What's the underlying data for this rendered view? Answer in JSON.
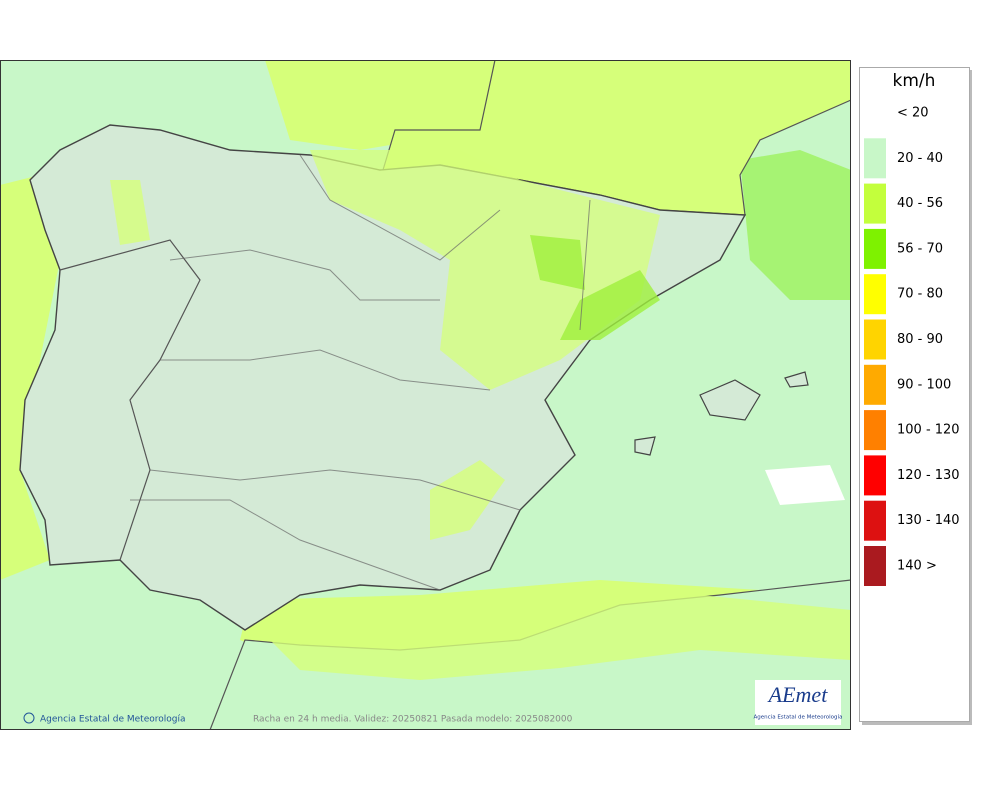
{
  "legend": {
    "title": "km/h",
    "items": [
      {
        "label": "< 20",
        "color": "#ffffff"
      },
      {
        "label": "20 - 40",
        "color": "#c8f7c8"
      },
      {
        "label": "40 - 56",
        "color": "#c3ff3c"
      },
      {
        "label": "56 - 70",
        "color": "#7ef200"
      },
      {
        "label": "70 - 80",
        "color": "#ffff00"
      },
      {
        "label": "80 - 90",
        "color": "#ffd400"
      },
      {
        "label": "90 - 100",
        "color": "#ffaa00"
      },
      {
        "label": "100 - 120",
        "color": "#ff8000"
      },
      {
        "label": "120 - 130",
        "color": "#ff0000"
      },
      {
        "label": "130 - 140",
        "color": "#dd1111"
      },
      {
        "label": "140 >",
        "color": "#aa1a1f"
      }
    ]
  },
  "footer": {
    "credit": "Agencia Estatal de Meteorología",
    "caption": "Racha en 24 h media. Validez: 20250821 Pasada modelo: 2025082000"
  },
  "logo": {
    "name": "AEmet",
    "subtitle": "Agencia Estatal de Meteorología"
  }
}
